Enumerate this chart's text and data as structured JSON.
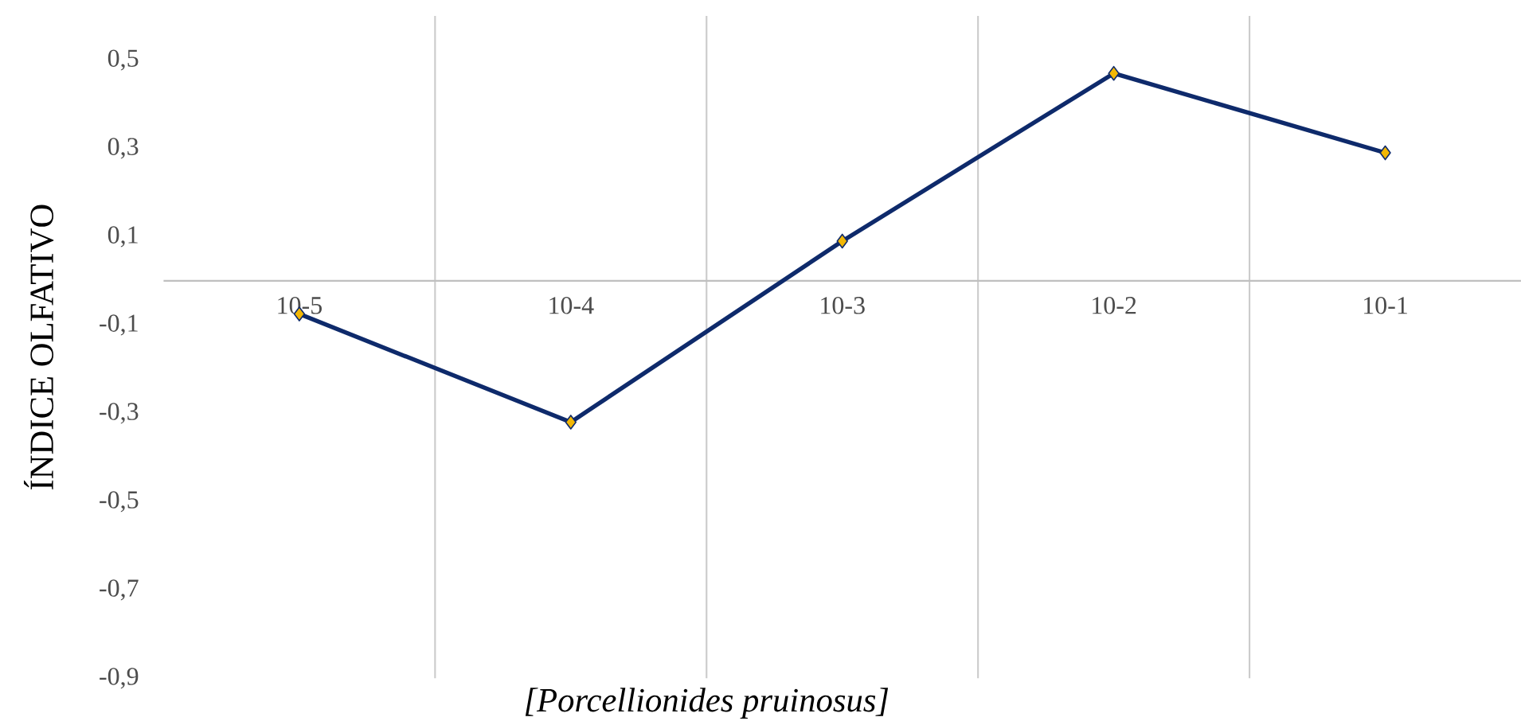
{
  "chart_data": {
    "type": "line",
    "xlabel": "[Porcellionides pruinosus]",
    "ylabel": "ÍNDICE OLFATIVO",
    "categories": [
      "10-5",
      "10-4",
      "10-3",
      "10-2",
      "10-1"
    ],
    "series": [
      {
        "color": "#0e2a6b",
        "values": [
          -0.075,
          -0.32,
          0.09,
          0.47,
          0.29
        ]
      }
    ],
    "marker": "diamond",
    "grid": "x",
    "line_style": "solid",
    "ylim": [
      -0.9,
      0.6
    ],
    "yticks": [
      {
        "value": -0.9,
        "label": "-0,9"
      },
      {
        "value": -0.7,
        "label": "-0,7"
      },
      {
        "value": -0.5,
        "label": "-0,5"
      },
      {
        "value": -0.3,
        "label": "-0,3"
      },
      {
        "value": -0.1,
        "label": "-0,1"
      },
      {
        "value": 0.1,
        "label": "0,1"
      },
      {
        "value": 0.3,
        "label": "0,3"
      },
      {
        "value": 0.5,
        "label": "0,5"
      }
    ]
  }
}
